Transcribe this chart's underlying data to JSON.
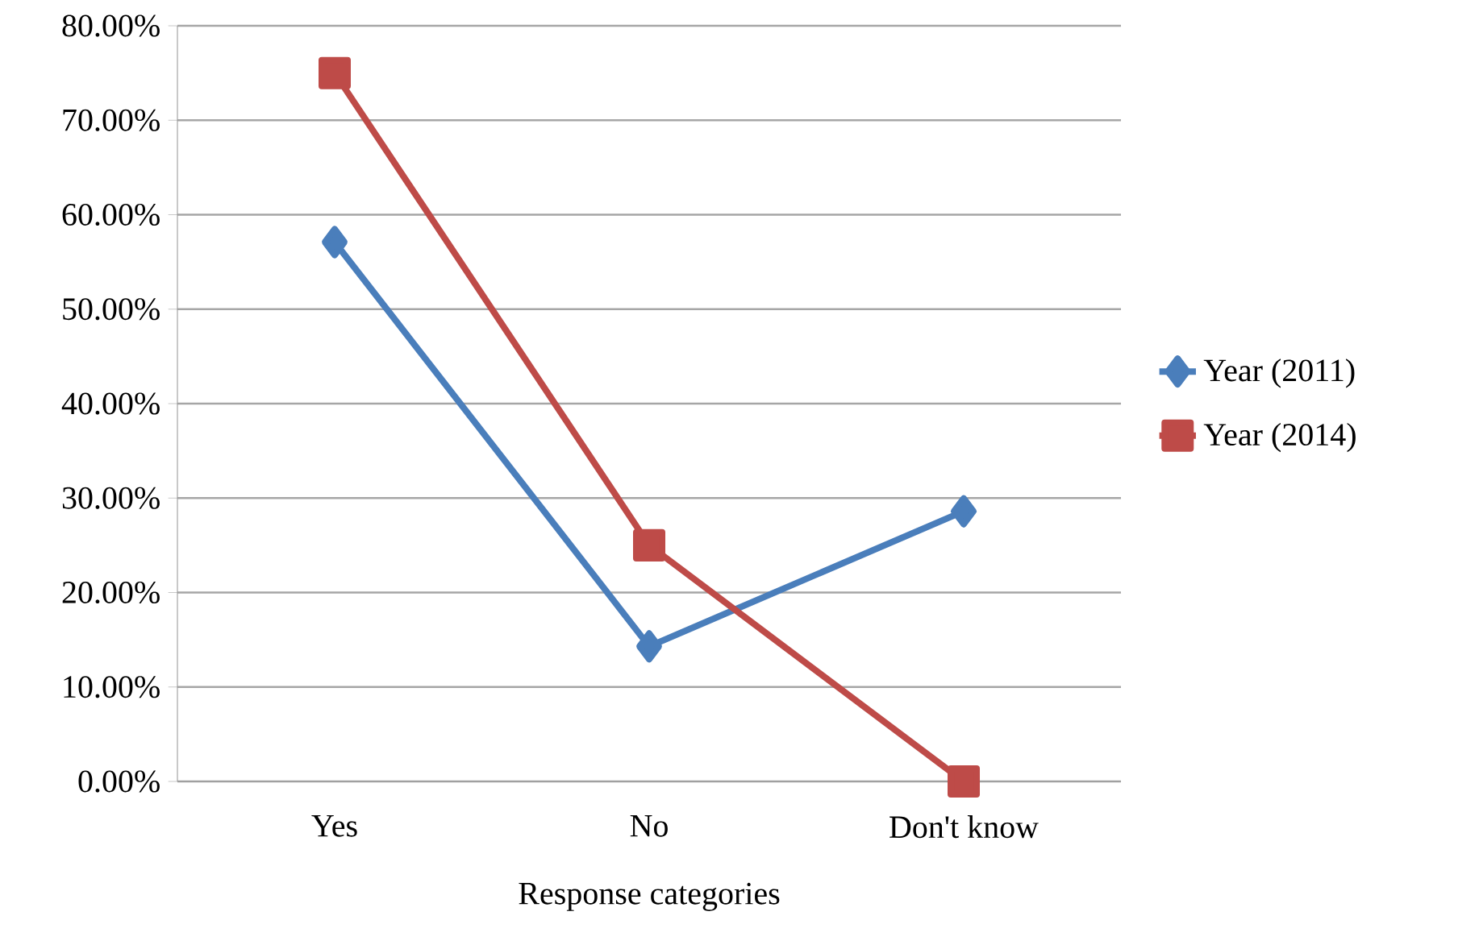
{
  "chart_data": {
    "type": "line",
    "xlabel": "Response categories",
    "categories": [
      "Yes",
      "No",
      "Don't know"
    ],
    "series": [
      {
        "name": "Year (2011)",
        "color": "#4a7ebb",
        "marker": "diamond",
        "values": [
          57.1,
          14.3,
          28.6
        ]
      },
      {
        "name": "Year (2014)",
        "color": "#be4b48",
        "marker": "square",
        "values": [
          75,
          25,
          0
        ]
      }
    ],
    "ylim": [
      0,
      80
    ],
    "yticks": [
      {
        "value": 0,
        "label": "0.00%"
      },
      {
        "value": 10,
        "label": "10.00%"
      },
      {
        "value": 20,
        "label": "20.00%"
      },
      {
        "value": 30,
        "label": "30.00%"
      },
      {
        "value": 40,
        "label": "40.00%"
      },
      {
        "value": 50,
        "label": "50.00%"
      },
      {
        "value": 60,
        "label": "60.00%"
      },
      {
        "value": 70,
        "label": "70.00%"
      },
      {
        "value": 80,
        "label": "80.00%"
      }
    ],
    "grid": "y",
    "legend": "right",
    "line_style": "solid"
  }
}
